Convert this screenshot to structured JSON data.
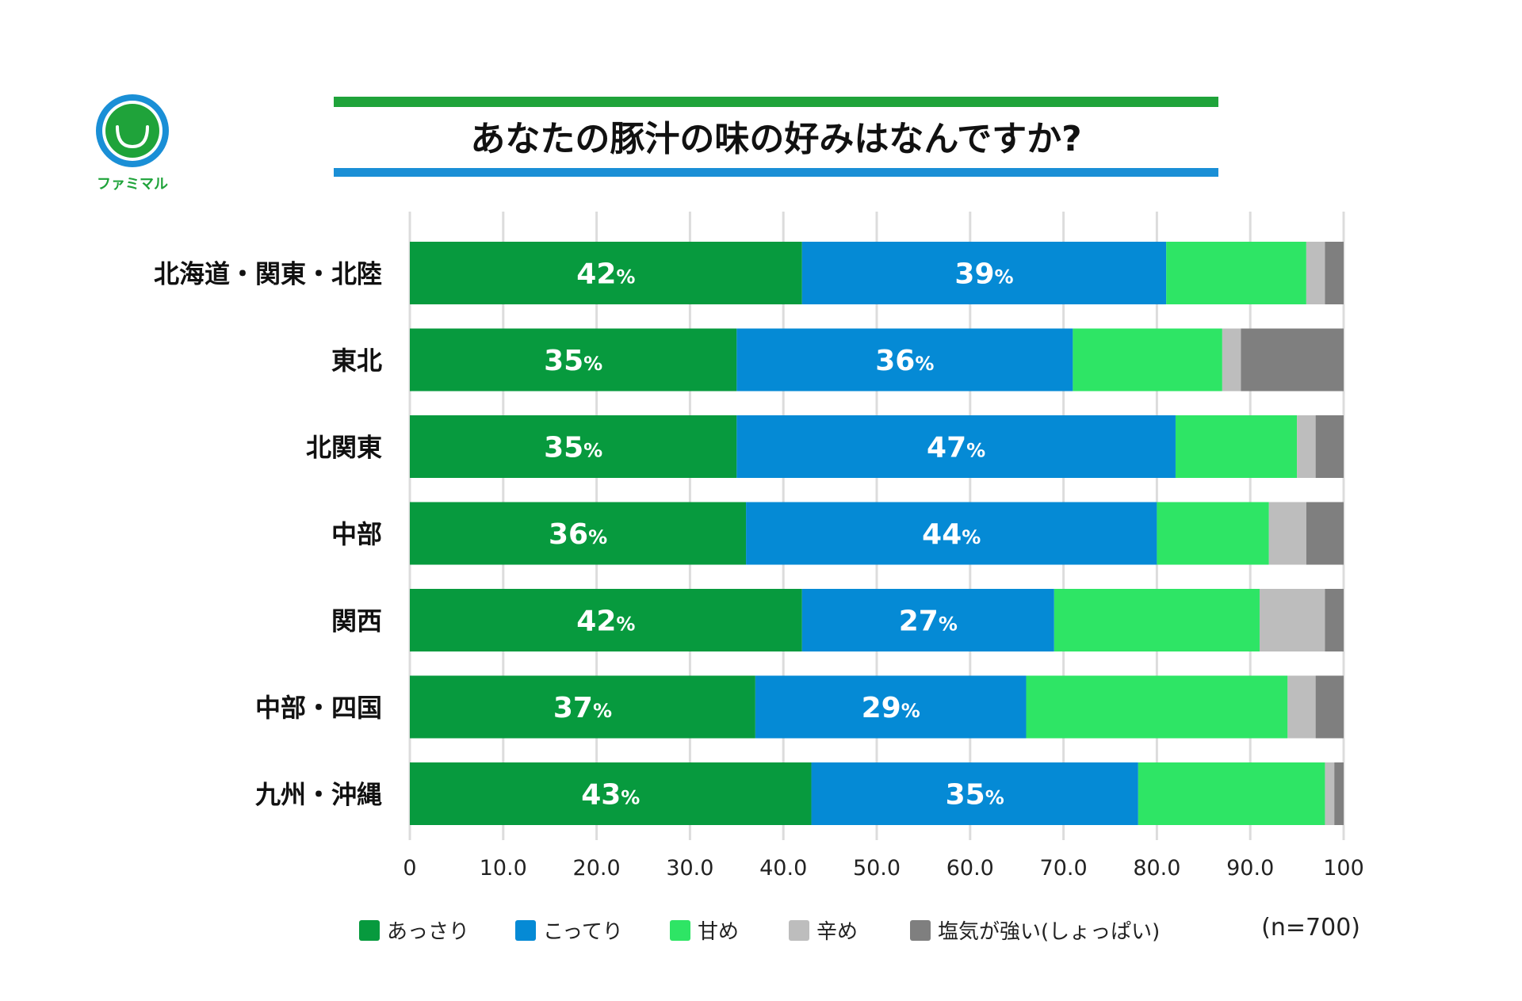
{
  "logo": {
    "text": "ファミマル",
    "colors": {
      "ring": "#1a8fd6",
      "face": "#1fa33a"
    }
  },
  "chart_data": {
    "type": "bar",
    "orientation": "horizontal",
    "stacked": true,
    "title": "あなたの豚汁の味の好みはなんですか?",
    "categories": [
      "北海道・関東・北陸",
      "東北",
      "北関東",
      "中部",
      "関西",
      "中部・四国",
      "九州・沖縄"
    ],
    "series": [
      {
        "name": "あっさり",
        "color": "#079a3e",
        "values": [
          42,
          35,
          35,
          36,
          42,
          37,
          43
        ],
        "labeled": true
      },
      {
        "name": "こってり",
        "color": "#058ad5",
        "values": [
          39,
          36,
          47,
          44,
          27,
          29,
          35
        ],
        "labeled": true
      },
      {
        "name": "甘め",
        "color": "#2ee565",
        "values": [
          15,
          16,
          13,
          12,
          22,
          28,
          20
        ],
        "labeled": false
      },
      {
        "name": "辛め",
        "color": "#bdbdbd",
        "values": [
          2,
          2,
          2,
          4,
          7,
          3,
          1
        ],
        "labeled": false
      },
      {
        "name": "塩気が強い(しょっぱい)",
        "color": "#7f7f7f",
        "values": [
          2,
          11,
          3,
          4,
          2,
          3,
          1
        ],
        "labeled": false
      }
    ],
    "xlim": [
      0,
      100
    ],
    "xticks": [
      "0",
      "10.0",
      "20.0",
      "30.0",
      "40.0",
      "50.0",
      "60.0",
      "70.0",
      "80.0",
      "90.0",
      "100"
    ],
    "label_suffix": "%",
    "grid": true,
    "legend": "bottom",
    "note": "(n=700)",
    "title_bar_colors": {
      "top": "#1fa33a",
      "bottom": "#1a8fd6"
    }
  }
}
